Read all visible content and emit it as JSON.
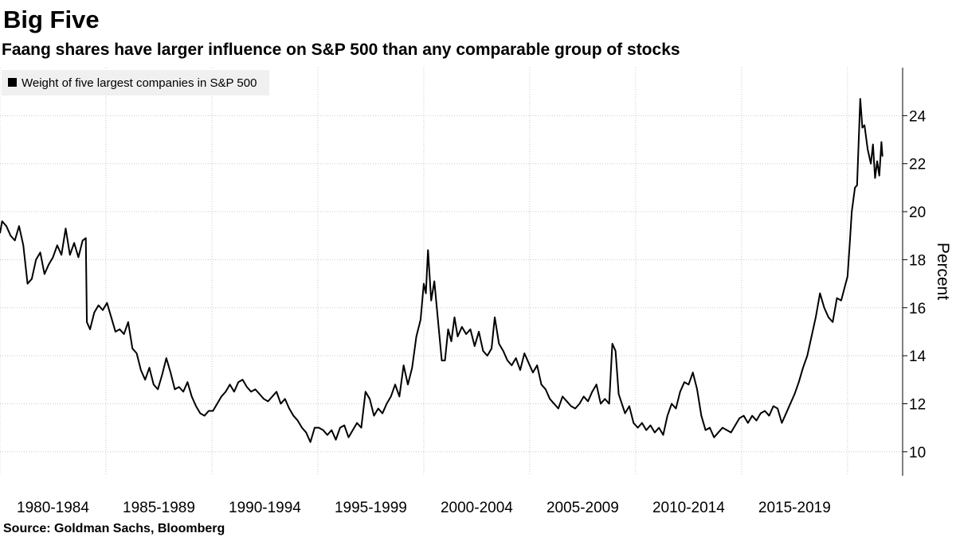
{
  "chart_data": {
    "type": "line",
    "title": "Big Five",
    "subtitle": "Faang shares have larger influence on S&P 500 than any comparable group of stocks",
    "y_label": "Percent",
    "source": "Source: Goldman Sachs, Bloomberg",
    "legend": "upper left",
    "grid": true,
    "xlim": [
      1980,
      2022.6
    ],
    "ylim": [
      9,
      26
    ],
    "yticks": [
      10,
      12,
      14,
      16,
      18,
      20,
      22,
      24
    ],
    "xticks": [
      {
        "value": 1980,
        "label": "1980-1984"
      },
      {
        "value": 1985,
        "label": "1985-1989"
      },
      {
        "value": 1990,
        "label": "1990-1994"
      },
      {
        "value": 1995,
        "label": "1995-1999"
      },
      {
        "value": 2000,
        "label": "2000-2004"
      },
      {
        "value": 2005,
        "label": "2005-2009"
      },
      {
        "value": 2010,
        "label": "2010-2014"
      },
      {
        "value": 2015,
        "label": "2015-2019"
      },
      {
        "value": 2020,
        "label": null
      }
    ],
    "series": [
      {
        "name": "Weight of five largest companies in S&P 500",
        "color": "#000000",
        "x": [
          1980.0,
          1980.1,
          1980.3,
          1980.5,
          1980.7,
          1980.9,
          1981.1,
          1981.3,
          1981.5,
          1981.7,
          1981.9,
          1982.1,
          1982.3,
          1982.5,
          1982.7,
          1982.9,
          1983.1,
          1983.3,
          1983.5,
          1983.7,
          1983.9,
          1984.05,
          1984.1,
          1984.25,
          1984.45,
          1984.65,
          1984.85,
          1985.05,
          1985.25,
          1985.45,
          1985.65,
          1985.85,
          1986.05,
          1986.25,
          1986.45,
          1986.65,
          1986.85,
          1987.05,
          1987.25,
          1987.45,
          1987.65,
          1987.85,
          1988.05,
          1988.25,
          1988.45,
          1988.65,
          1988.85,
          1989.05,
          1989.25,
          1989.45,
          1989.65,
          1989.85,
          1990.05,
          1990.25,
          1990.45,
          1990.65,
          1990.85,
          1991.05,
          1991.25,
          1991.45,
          1991.65,
          1991.85,
          1992.05,
          1992.25,
          1992.45,
          1992.65,
          1992.85,
          1993.05,
          1993.25,
          1993.45,
          1993.65,
          1993.85,
          1994.05,
          1994.25,
          1994.45,
          1994.65,
          1994.85,
          1995.05,
          1995.25,
          1995.45,
          1995.65,
          1995.85,
          1996.05,
          1996.25,
          1996.45,
          1996.65,
          1996.85,
          1997.05,
          1997.25,
          1997.45,
          1997.65,
          1997.85,
          1998.05,
          1998.25,
          1998.45,
          1998.65,
          1998.85,
          1999.05,
          1999.25,
          1999.45,
          1999.65,
          1999.85,
          2000.0,
          2000.1,
          2000.2,
          2000.35,
          2000.5,
          2000.7,
          2000.85,
          2001.0,
          2001.15,
          2001.3,
          2001.45,
          2001.6,
          2001.8,
          2002.0,
          2002.2,
          2002.4,
          2002.6,
          2002.8,
          2003.0,
          2003.2,
          2003.35,
          2003.55,
          2003.75,
          2003.95,
          2004.15,
          2004.35,
          2004.55,
          2004.75,
          2004.95,
          2005.15,
          2005.35,
          2005.55,
          2005.75,
          2005.95,
          2006.15,
          2006.35,
          2006.55,
          2006.75,
          2006.95,
          2007.15,
          2007.35,
          2007.55,
          2007.75,
          2007.95,
          2008.15,
          2008.35,
          2008.55,
          2008.75,
          2008.9,
          2009.05,
          2009.2,
          2009.35,
          2009.5,
          2009.7,
          2009.9,
          2010.1,
          2010.3,
          2010.5,
          2010.7,
          2010.9,
          2011.1,
          2011.3,
          2011.5,
          2011.7,
          2011.9,
          2012.1,
          2012.3,
          2012.5,
          2012.7,
          2012.9,
          2013.1,
          2013.3,
          2013.5,
          2013.7,
          2013.9,
          2014.1,
          2014.3,
          2014.5,
          2014.7,
          2014.9,
          2015.1,
          2015.3,
          2015.5,
          2015.7,
          2015.9,
          2016.1,
          2016.3,
          2016.5,
          2016.7,
          2016.9,
          2017.1,
          2017.3,
          2017.5,
          2017.7,
          2017.9,
          2018.1,
          2018.3,
          2018.5,
          2018.7,
          2018.9,
          2019.1,
          2019.3,
          2019.5,
          2019.7,
          2019.85,
          2020.0,
          2020.1,
          2020.2,
          2020.35,
          2020.45,
          2020.6,
          2020.7,
          2020.8,
          2020.95,
          2021.1,
          2021.2,
          2021.3,
          2021.4,
          2021.5,
          2021.6,
          2021.65
        ],
        "values": [
          19.1,
          19.6,
          19.4,
          19.0,
          18.8,
          19.4,
          18.6,
          17.0,
          17.2,
          18.0,
          18.3,
          17.4,
          17.8,
          18.1,
          18.6,
          18.2,
          19.3,
          18.2,
          18.7,
          18.1,
          18.8,
          18.9,
          15.4,
          15.1,
          15.8,
          16.1,
          15.9,
          16.2,
          15.6,
          15.0,
          15.1,
          14.9,
          15.4,
          14.3,
          14.1,
          13.4,
          13.0,
          13.5,
          12.8,
          12.6,
          13.2,
          13.9,
          13.3,
          12.6,
          12.7,
          12.5,
          12.9,
          12.3,
          11.9,
          11.6,
          11.5,
          11.7,
          11.7,
          12.0,
          12.3,
          12.5,
          12.8,
          12.5,
          12.9,
          13.0,
          12.7,
          12.5,
          12.6,
          12.4,
          12.2,
          12.1,
          12.3,
          12.5,
          12.0,
          12.2,
          11.8,
          11.5,
          11.3,
          11.0,
          10.8,
          10.4,
          11.0,
          11.0,
          10.9,
          10.7,
          10.9,
          10.5,
          11.0,
          11.1,
          10.6,
          10.9,
          11.2,
          11.0,
          12.5,
          12.2,
          11.5,
          11.8,
          11.6,
          12.0,
          12.3,
          12.8,
          12.3,
          13.6,
          12.8,
          13.5,
          14.8,
          15.5,
          17.0,
          16.6,
          18.4,
          16.3,
          17.1,
          15.2,
          13.8,
          13.8,
          15.1,
          14.6,
          15.6,
          14.8,
          15.2,
          14.9,
          15.1,
          14.4,
          15.0,
          14.2,
          14.0,
          14.3,
          15.6,
          14.5,
          14.2,
          13.8,
          13.6,
          13.9,
          13.4,
          14.1,
          13.7,
          13.3,
          13.6,
          12.8,
          12.6,
          12.2,
          12.0,
          11.8,
          12.3,
          12.1,
          11.9,
          11.8,
          12.0,
          12.3,
          12.1,
          12.5,
          12.8,
          12.0,
          12.2,
          12.0,
          14.5,
          14.2,
          12.4,
          12.0,
          11.6,
          11.9,
          11.2,
          11.0,
          11.2,
          10.9,
          11.1,
          10.8,
          11.0,
          10.7,
          11.5,
          12.0,
          11.8,
          12.5,
          12.9,
          12.8,
          13.3,
          12.6,
          11.5,
          10.9,
          11.0,
          10.6,
          10.8,
          11.0,
          10.9,
          10.8,
          11.1,
          11.4,
          11.5,
          11.2,
          11.5,
          11.3,
          11.6,
          11.7,
          11.5,
          11.9,
          11.8,
          11.2,
          11.6,
          12.0,
          12.4,
          12.9,
          13.5,
          14.0,
          14.8,
          15.6,
          16.6,
          16.0,
          15.6,
          15.4,
          16.4,
          16.3,
          16.8,
          17.3,
          18.6,
          20.0,
          21.0,
          21.1,
          24.7,
          23.5,
          23.6,
          22.6,
          22.0,
          22.8,
          21.4,
          22.1,
          21.5,
          22.9,
          22.3
        ]
      }
    ]
  }
}
